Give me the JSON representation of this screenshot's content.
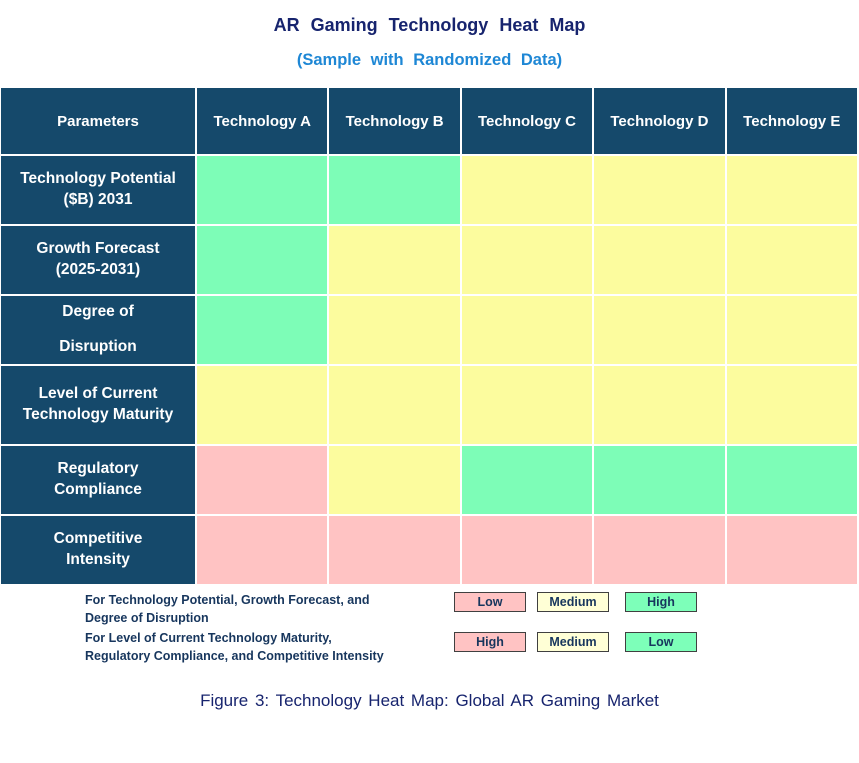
{
  "page": {
    "title": "AR Gaming Technology Heat Map",
    "subtitle": "(Sample with Randomized Data)",
    "caption": "Figure 3: Technology Heat Map: Global AR Gaming Market"
  },
  "colors": {
    "header_bg": "#15496B",
    "title_text": "#17246E",
    "subtitle_text": "#1E87D5",
    "high_green": "#7DFDB7",
    "medium_yellow": "#FCFC9E",
    "low_pink": "#FFC3C3",
    "legend_medium_yellow": "#FFFFD6",
    "legend_green": "#7DFFB9",
    "chip_border": "#404040"
  },
  "table": {
    "header": [
      "Parameters",
      "Technology A",
      "Technology B",
      "Technology C",
      "Technology D",
      "Technology E"
    ],
    "rows": [
      {
        "label_lines": [
          "Technology Potential",
          "($B) 2031"
        ],
        "cells": [
          "green",
          "green",
          "yellow",
          "yellow",
          "yellow"
        ]
      },
      {
        "label_lines": [
          "Growth Forecast",
          "(2025-2031)"
        ],
        "cells": [
          "green",
          "yellow",
          "yellow",
          "yellow",
          "yellow"
        ]
      },
      {
        "label_lines": [
          "Degree of",
          "Disruption"
        ],
        "cells": [
          "green",
          "yellow",
          "yellow",
          "yellow",
          "yellow"
        ]
      },
      {
        "label_lines": [
          "Level of Current",
          "Technology Maturity"
        ],
        "cells": [
          "yellow",
          "yellow",
          "yellow",
          "yellow",
          "yellow"
        ]
      },
      {
        "label_lines": [
          "Regulatory",
          "Compliance"
        ],
        "cells": [
          "pink",
          "yellow",
          "green",
          "green",
          "green"
        ]
      },
      {
        "label_lines": [
          "Competitive",
          "Intensity"
        ],
        "cells": [
          "pink",
          "pink",
          "pink",
          "pink",
          "pink"
        ]
      }
    ]
  },
  "legend": {
    "group1": {
      "lines": [
        "For Technology Potential, Growth Forecast, and",
        "Degree of Disruption"
      ],
      "items": [
        {
          "label": "Low",
          "color": "pink"
        },
        {
          "label": "Medium",
          "color": "yellow"
        },
        {
          "label": "High",
          "color": "green"
        }
      ]
    },
    "group2": {
      "lines": [
        "For Level of Current Technology Maturity,",
        "Regulatory Compliance, and Competitive Intensity"
      ],
      "items": [
        {
          "label": "High",
          "color": "pink"
        },
        {
          "label": "Medium",
          "color": "yellow"
        },
        {
          "label": "Low",
          "color": "green"
        }
      ]
    }
  },
  "chart_data": {
    "type": "heatmap",
    "title": "AR Gaming Technology Heat Map",
    "subtitle": "(Sample with Randomized Data)",
    "caption": "Figure 3: Technology Heat Map: Global AR Gaming Market",
    "columns": [
      "Technology A",
      "Technology B",
      "Technology C",
      "Technology D",
      "Technology E"
    ],
    "rows": [
      "Technology Potential ($B) 2031",
      "Growth Forecast (2025-2031)",
      "Degree of Disruption",
      "Level of Current Technology Maturity",
      "Regulatory Compliance",
      "Competitive Intensity"
    ],
    "values": [
      [
        "High",
        "High",
        "Medium",
        "Medium",
        "Medium"
      ],
      [
        "High",
        "Medium",
        "Medium",
        "Medium",
        "Medium"
      ],
      [
        "High",
        "Medium",
        "Medium",
        "Medium",
        "Medium"
      ],
      [
        "Medium",
        "Medium",
        "Medium",
        "Medium",
        "Medium"
      ],
      [
        "High",
        "Medium",
        "Low",
        "Low",
        "Low"
      ],
      [
        "High",
        "High",
        "High",
        "High",
        "High"
      ]
    ],
    "cell_colors": [
      [
        "green",
        "green",
        "yellow",
        "yellow",
        "yellow"
      ],
      [
        "green",
        "yellow",
        "yellow",
        "yellow",
        "yellow"
      ],
      [
        "green",
        "yellow",
        "yellow",
        "yellow",
        "yellow"
      ],
      [
        "yellow",
        "yellow",
        "yellow",
        "yellow",
        "yellow"
      ],
      [
        "pink",
        "yellow",
        "green",
        "green",
        "green"
      ],
      [
        "pink",
        "pink",
        "pink",
        "pink",
        "pink"
      ]
    ],
    "color_scale_rows_1_to_3": {
      "Low": "pink",
      "Medium": "yellow",
      "High": "green"
    },
    "color_scale_rows_4_to_6": {
      "High": "pink",
      "Medium": "yellow",
      "Low": "green"
    },
    "legend_position": "bottom"
  }
}
